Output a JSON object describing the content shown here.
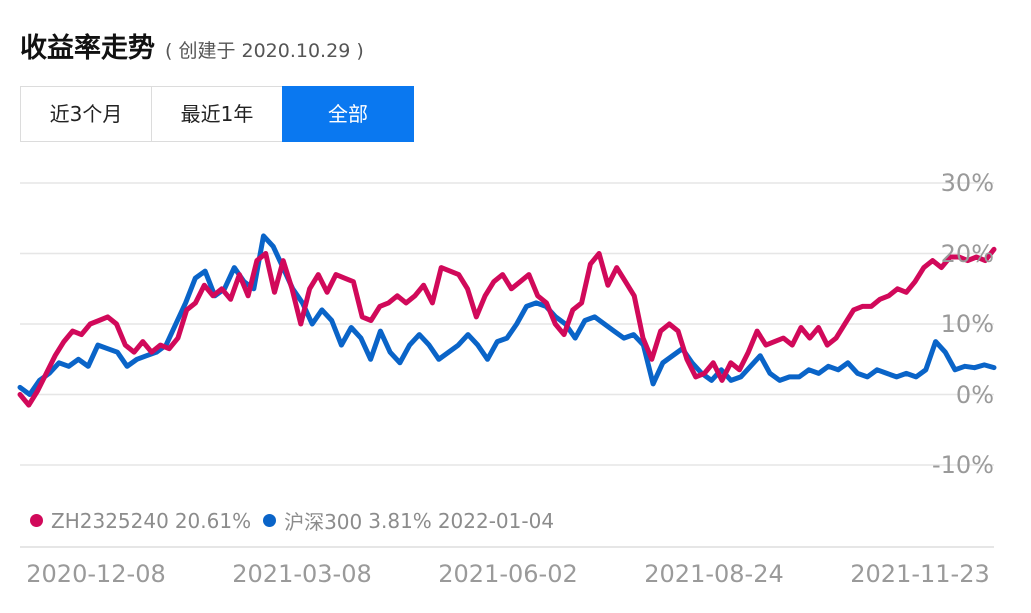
{
  "header": {
    "title": "收益率走势",
    "subtitle": "( 创建于 2020.10.29 )"
  },
  "tabs": [
    {
      "label": "近3个月",
      "active": false
    },
    {
      "label": "最近1年",
      "active": false
    },
    {
      "label": "全部",
      "active": true
    }
  ],
  "legend": {
    "series1": {
      "name": "ZH2325240",
      "value": "20.61%"
    },
    "series2": {
      "name": "沪深300",
      "value": "3.81%",
      "date": "2022-01-04"
    }
  },
  "colors": {
    "series1": "#d1095a",
    "series2": "#0a64c8",
    "grid": "#e6e6e6",
    "active_tab": "#0a78f0"
  },
  "chart_data": {
    "type": "line",
    "ylim": [
      -10,
      30
    ],
    "y_ticks": [
      "30%",
      "20%",
      "10%",
      "0%",
      "-10%"
    ],
    "y_tick_values": [
      30,
      20,
      10,
      0,
      -10
    ],
    "x_tick_labels": [
      "2020-12-08",
      "2021-03-08",
      "2021-06-02",
      "2021-08-24",
      "2021-11-23"
    ],
    "grid": true,
    "legend_position": "bottom-left",
    "series": [
      {
        "name": "ZH2325240",
        "values": [
          0,
          -1.5,
          0.5,
          3,
          5.5,
          7.5,
          9,
          8.5,
          10,
          10.5,
          11,
          10,
          7,
          6,
          7.5,
          6,
          7,
          6.5,
          8,
          12,
          13,
          15.5,
          14,
          15,
          13.5,
          17,
          14,
          19,
          20,
          14.5,
          19,
          15,
          10,
          15,
          17,
          14.5,
          17,
          16.5,
          16,
          11,
          10.5,
          12.5,
          13,
          14,
          13,
          14,
          15.5,
          13,
          18,
          17.5,
          17,
          15,
          11,
          14,
          16,
          17,
          15,
          16,
          17,
          14,
          13,
          10,
          8.5,
          12,
          13,
          18.5,
          20,
          15.5,
          18,
          16,
          14,
          8,
          5,
          9,
          10,
          9,
          5,
          2.5,
          3,
          4.5,
          2,
          4.5,
          3.5,
          6,
          9,
          7,
          7.5,
          8,
          7,
          9.5,
          8,
          9.5,
          7,
          8,
          10,
          12,
          12.5,
          12.5,
          13.5,
          14,
          15,
          14.5,
          16,
          18,
          19,
          18,
          19.5,
          19.5,
          19,
          19.5,
          19,
          20.6
        ]
      },
      {
        "name": "沪深300",
        "values": [
          1,
          0,
          2,
          3,
          4.5,
          4,
          5,
          4,
          7,
          6.5,
          6,
          4,
          5,
          5.5,
          6,
          7,
          10,
          13,
          16.5,
          17.5,
          14,
          15,
          18,
          16,
          15,
          22.5,
          21,
          18,
          15,
          13,
          10,
          12,
          10.5,
          7,
          9.5,
          8,
          5,
          9,
          6,
          4.5,
          7,
          8.5,
          7,
          5,
          6,
          7,
          8.5,
          7,
          5,
          7.5,
          8,
          10,
          12.5,
          13,
          12.5,
          11,
          10,
          8,
          10.5,
          11,
          10,
          9,
          8,
          8.5,
          7,
          1.5,
          4.5,
          5.5,
          6.5,
          4.5,
          3,
          2,
          3.5,
          2,
          2.5,
          4,
          5.5,
          3,
          2,
          2.5,
          2.5,
          3.5,
          3,
          4,
          3.5,
          4.5,
          3,
          2.5,
          3.5,
          3,
          2.5,
          3,
          2.5,
          3.5,
          7.5,
          6,
          3.5,
          4,
          3.8,
          4.2,
          3.81
        ]
      }
    ]
  }
}
